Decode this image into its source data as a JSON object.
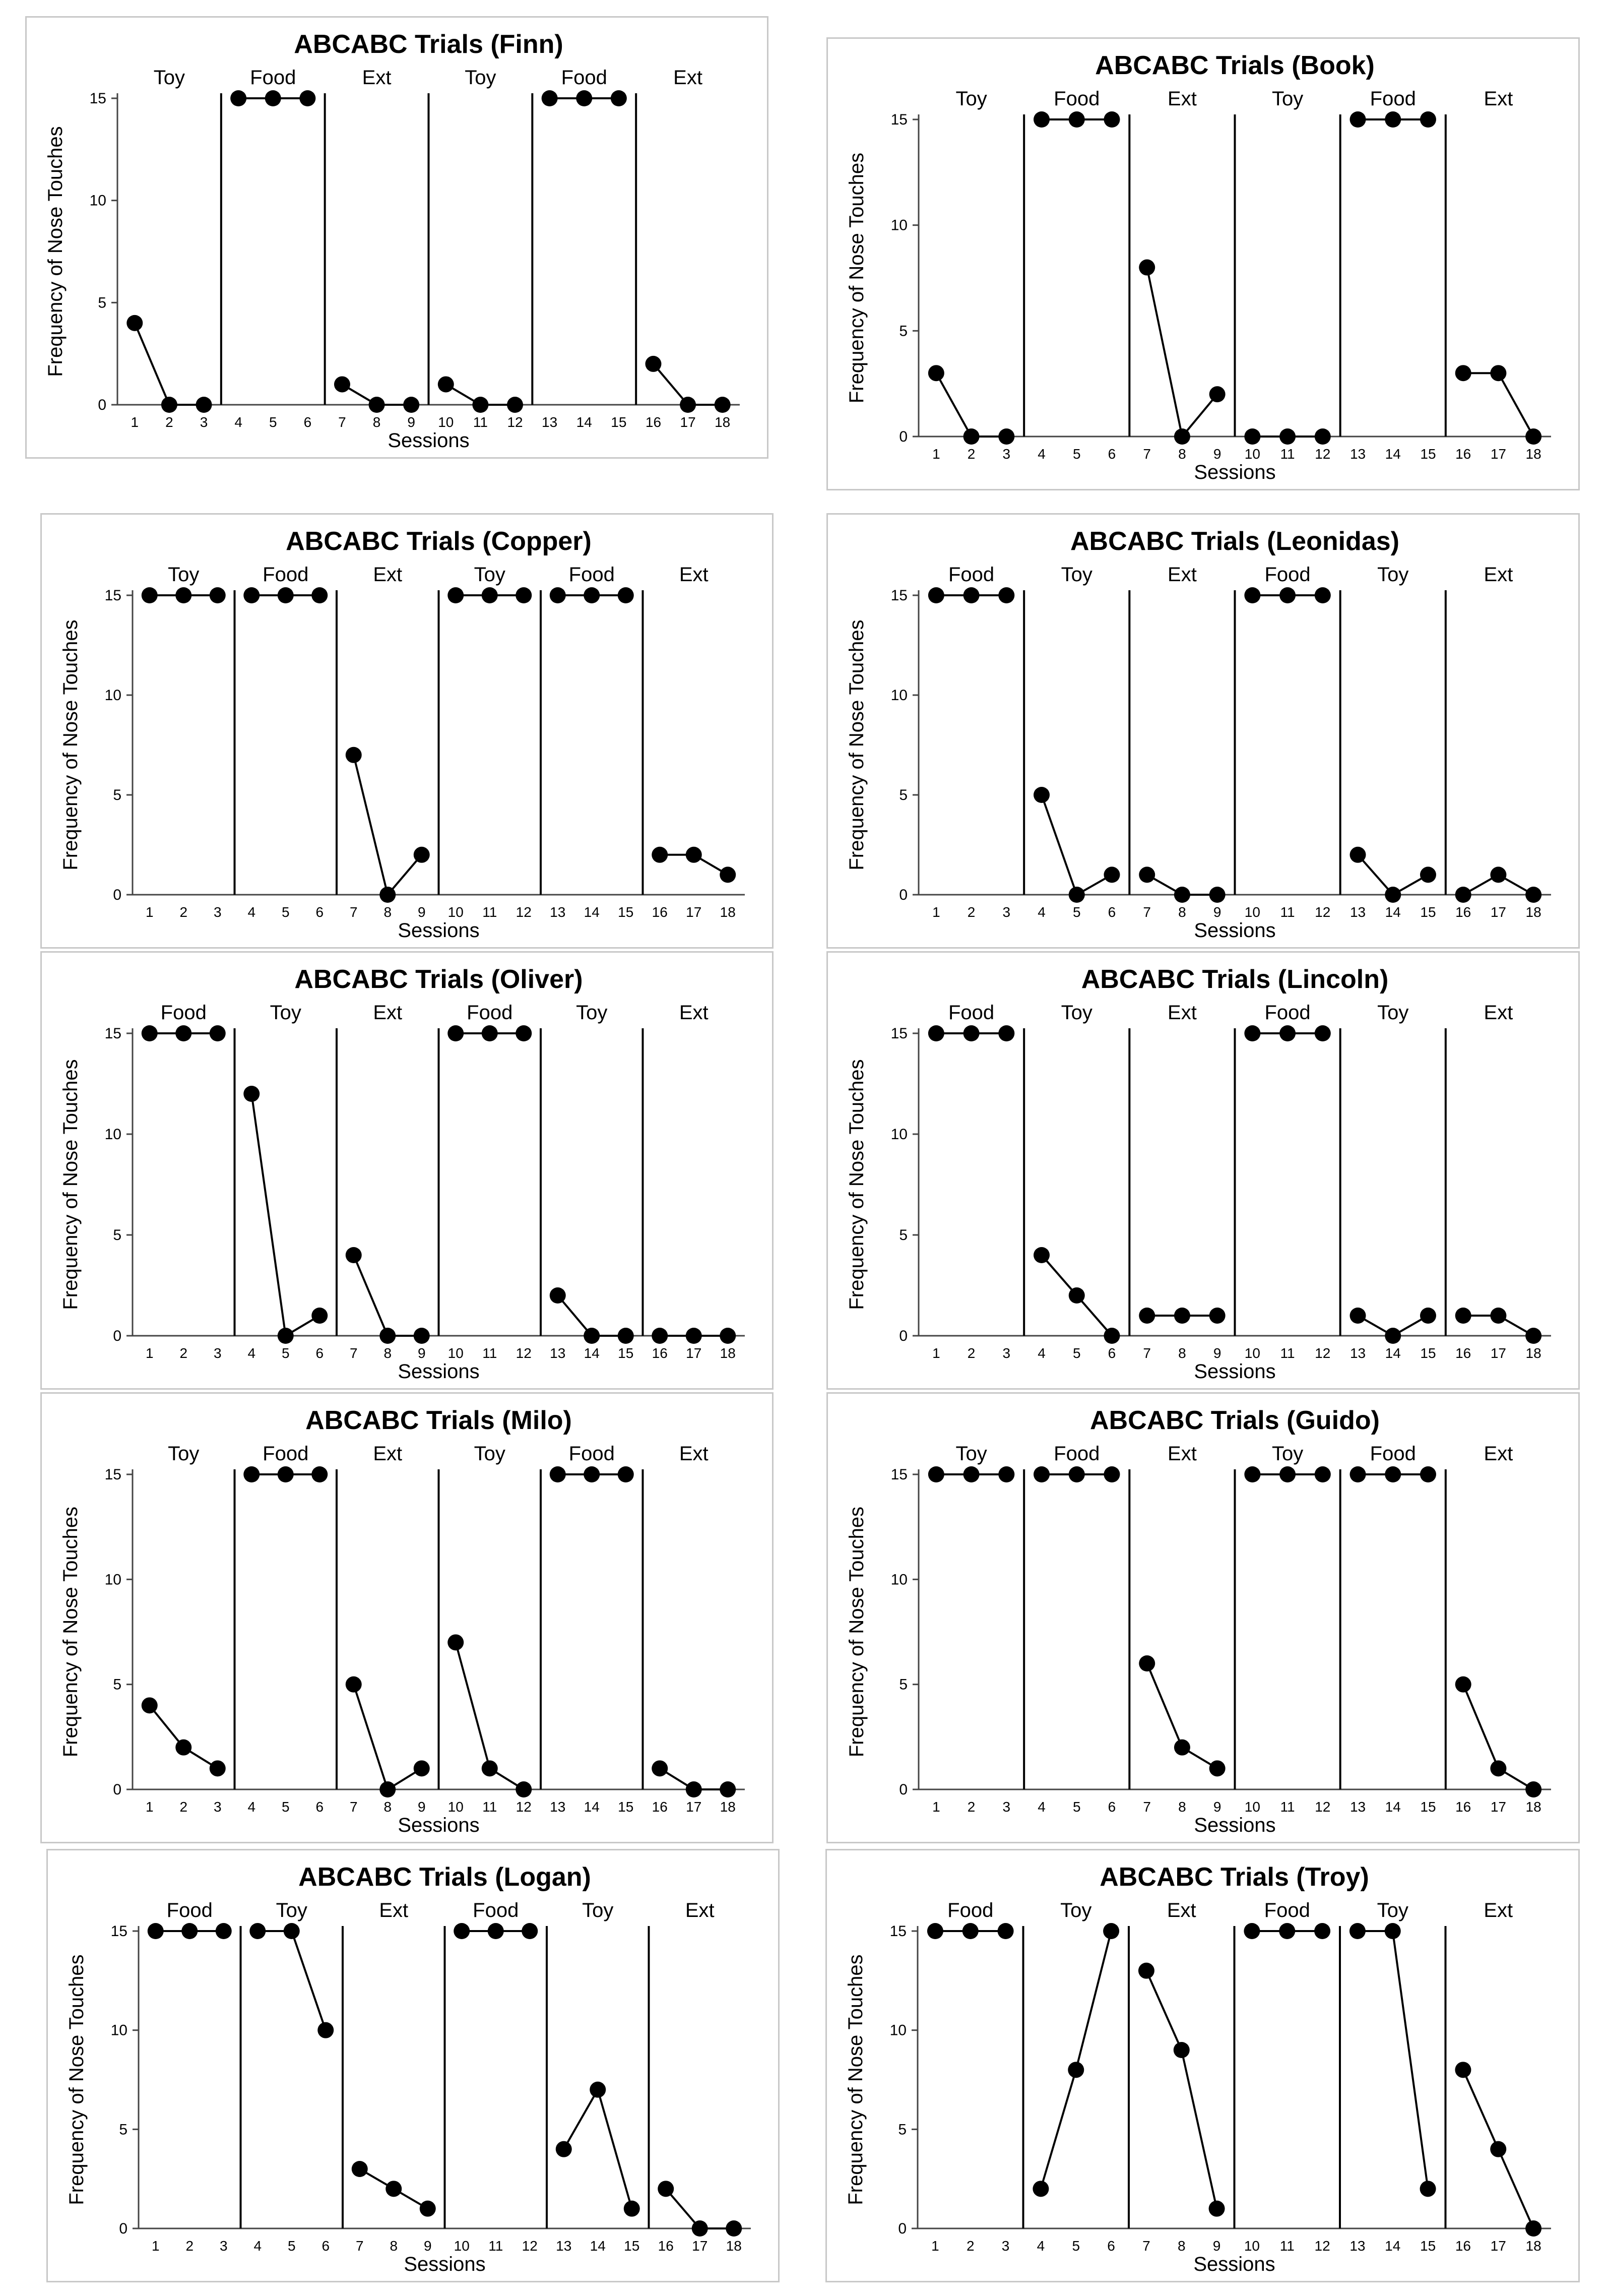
{
  "chart_data": [
    {
      "type": "line",
      "title": "ABCABC Trials (Finn)",
      "xlabel": "Sessions",
      "ylabel": "Frequency of Nose Touches",
      "ylim": [
        0,
        15
      ],
      "yticks": [
        0,
        5,
        10,
        15
      ],
      "x": [
        1,
        2,
        3,
        4,
        5,
        6,
        7,
        8,
        9,
        10,
        11,
        12,
        13,
        14,
        15,
        16,
        17,
        18
      ],
      "phases": [
        "Toy",
        "Food",
        "Ext",
        "Toy",
        "Food",
        "Ext"
      ],
      "series": [
        {
          "name": "Finn",
          "values": [
            4,
            0,
            0,
            15,
            15,
            15,
            1,
            0,
            0,
            1,
            0,
            0,
            15,
            15,
            15,
            2,
            0,
            0
          ]
        }
      ]
    },
    {
      "type": "line",
      "title": "ABCABC Trials (Book)",
      "xlabel": "Sessions",
      "ylabel": "Frequency of Nose Touches",
      "ylim": [
        0,
        15
      ],
      "yticks": [
        0,
        5,
        10,
        15
      ],
      "x": [
        1,
        2,
        3,
        4,
        5,
        6,
        7,
        8,
        9,
        10,
        11,
        12,
        13,
        14,
        15,
        16,
        17,
        18
      ],
      "phases": [
        "Toy",
        "Food",
        "Ext",
        "Toy",
        "Food",
        "Ext"
      ],
      "series": [
        {
          "name": "Book",
          "values": [
            3,
            0,
            0,
            15,
            15,
            15,
            8,
            0,
            2,
            0,
            0,
            0,
            15,
            15,
            15,
            3,
            3,
            0
          ]
        }
      ]
    },
    {
      "type": "line",
      "title": "ABCABC Trials (Copper)",
      "xlabel": "Sessions",
      "ylabel": "Frequency of Nose Touches",
      "ylim": [
        0,
        15
      ],
      "yticks": [
        0,
        5,
        10,
        15
      ],
      "x": [
        1,
        2,
        3,
        4,
        5,
        6,
        7,
        8,
        9,
        10,
        11,
        12,
        13,
        14,
        15,
        16,
        17,
        18
      ],
      "phases": [
        "Toy",
        "Food",
        "Ext",
        "Toy",
        "Food",
        "Ext"
      ],
      "series": [
        {
          "name": "Copper",
          "values": [
            15,
            15,
            15,
            15,
            15,
            15,
            7,
            0,
            2,
            15,
            15,
            15,
            15,
            15,
            15,
            2,
            2,
            1
          ]
        }
      ]
    },
    {
      "type": "line",
      "title": "ABCABC Trials (Leonidas)",
      "xlabel": "Sessions",
      "ylabel": "Frequency of Nose Touches",
      "ylim": [
        0,
        15
      ],
      "yticks": [
        0,
        5,
        10,
        15
      ],
      "x": [
        1,
        2,
        3,
        4,
        5,
        6,
        7,
        8,
        9,
        10,
        11,
        12,
        13,
        14,
        15,
        16,
        17,
        18
      ],
      "phases": [
        "Food",
        "Toy",
        "Ext",
        "Food",
        "Toy",
        "Ext"
      ],
      "series": [
        {
          "name": "Leonidas",
          "values": [
            15,
            15,
            15,
            5,
            0,
            1,
            1,
            0,
            0,
            15,
            15,
            15,
            2,
            0,
            1,
            0,
            1,
            0
          ]
        }
      ]
    },
    {
      "type": "line",
      "title": "ABCABC Trials (Oliver)",
      "xlabel": "Sessions",
      "ylabel": "Frequency of Nose Touches",
      "ylim": [
        0,
        15
      ],
      "yticks": [
        0,
        5,
        10,
        15
      ],
      "x": [
        1,
        2,
        3,
        4,
        5,
        6,
        7,
        8,
        9,
        10,
        11,
        12,
        13,
        14,
        15,
        16,
        17,
        18
      ],
      "phases": [
        "Food",
        "Toy",
        "Ext",
        "Food",
        "Toy",
        "Ext"
      ],
      "series": [
        {
          "name": "Oliver",
          "values": [
            15,
            15,
            15,
            12,
            0,
            1,
            4,
            0,
            0,
            15,
            15,
            15,
            2,
            0,
            0,
            0,
            0,
            0
          ]
        }
      ]
    },
    {
      "type": "line",
      "title": "ABCABC Trials (Lincoln)",
      "xlabel": "Sessions",
      "ylabel": "Frequency of Nose Touches",
      "ylim": [
        0,
        15
      ],
      "yticks": [
        0,
        5,
        10,
        15
      ],
      "x": [
        1,
        2,
        3,
        4,
        5,
        6,
        7,
        8,
        9,
        10,
        11,
        12,
        13,
        14,
        15,
        16,
        17,
        18
      ],
      "phases": [
        "Food",
        "Toy",
        "Ext",
        "Food",
        "Toy",
        "Ext"
      ],
      "series": [
        {
          "name": "Lincoln",
          "values": [
            15,
            15,
            15,
            4,
            2,
            0,
            1,
            1,
            1,
            15,
            15,
            15,
            1,
            0,
            1,
            1,
            1,
            0
          ]
        }
      ]
    },
    {
      "type": "line",
      "title": "ABCABC Trials (Milo)",
      "xlabel": "Sessions",
      "ylabel": "Frequency of Nose Touches",
      "ylim": [
        0,
        15
      ],
      "yticks": [
        0,
        5,
        10,
        15
      ],
      "x": [
        1,
        2,
        3,
        4,
        5,
        6,
        7,
        8,
        9,
        10,
        11,
        12,
        13,
        14,
        15,
        16,
        17,
        18
      ],
      "phases": [
        "Toy",
        "Food",
        "Ext",
        "Toy",
        "Food",
        "Ext"
      ],
      "series": [
        {
          "name": "Milo",
          "values": [
            4,
            2,
            1,
            15,
            15,
            15,
            5,
            0,
            1,
            7,
            1,
            0,
            15,
            15,
            15,
            1,
            0,
            0
          ]
        }
      ]
    },
    {
      "type": "line",
      "title": "ABCABC Trials (Guido)",
      "xlabel": "Sessions",
      "ylabel": "Frequency of Nose Touches",
      "ylim": [
        0,
        15
      ],
      "yticks": [
        0,
        5,
        10,
        15
      ],
      "x": [
        1,
        2,
        3,
        4,
        5,
        6,
        7,
        8,
        9,
        10,
        11,
        12,
        13,
        14,
        15,
        16,
        17,
        18
      ],
      "phases": [
        "Toy",
        "Food",
        "Ext",
        "Toy",
        "Food",
        "Ext"
      ],
      "series": [
        {
          "name": "Guido",
          "values": [
            15,
            15,
            15,
            15,
            15,
            15,
            6,
            2,
            1,
            15,
            15,
            15,
            15,
            15,
            15,
            5,
            1,
            0
          ]
        }
      ]
    },
    {
      "type": "line",
      "title": "ABCABC Trials (Logan)",
      "xlabel": "Sessions",
      "ylabel": "Frequency of Nose Touches",
      "ylim": [
        0,
        15
      ],
      "yticks": [
        0,
        5,
        10,
        15
      ],
      "x": [
        1,
        2,
        3,
        4,
        5,
        6,
        7,
        8,
        9,
        10,
        11,
        12,
        13,
        14,
        15,
        16,
        17,
        18
      ],
      "phases": [
        "Food",
        "Toy",
        "Ext",
        "Food",
        "Toy",
        "Ext"
      ],
      "series": [
        {
          "name": "Logan",
          "values": [
            15,
            15,
            15,
            15,
            15,
            10,
            3,
            2,
            1,
            15,
            15,
            15,
            4,
            7,
            1,
            2,
            0,
            0
          ]
        }
      ]
    },
    {
      "type": "line",
      "title": "ABCABC Trials (Troy)",
      "xlabel": "Sessions",
      "ylabel": "Frequency of Nose Touches",
      "ylim": [
        0,
        15
      ],
      "yticks": [
        0,
        5,
        10,
        15
      ],
      "x": [
        1,
        2,
        3,
        4,
        5,
        6,
        7,
        8,
        9,
        10,
        11,
        12,
        13,
        14,
        15,
        16,
        17,
        18
      ],
      "phases": [
        "Food",
        "Toy",
        "Ext",
        "Food",
        "Toy",
        "Ext"
      ],
      "series": [
        {
          "name": "Troy",
          "values": [
            15,
            15,
            15,
            2,
            8,
            15,
            13,
            9,
            1,
            15,
            15,
            15,
            15,
            15,
            2,
            8,
            4,
            0
          ]
        }
      ]
    }
  ]
}
